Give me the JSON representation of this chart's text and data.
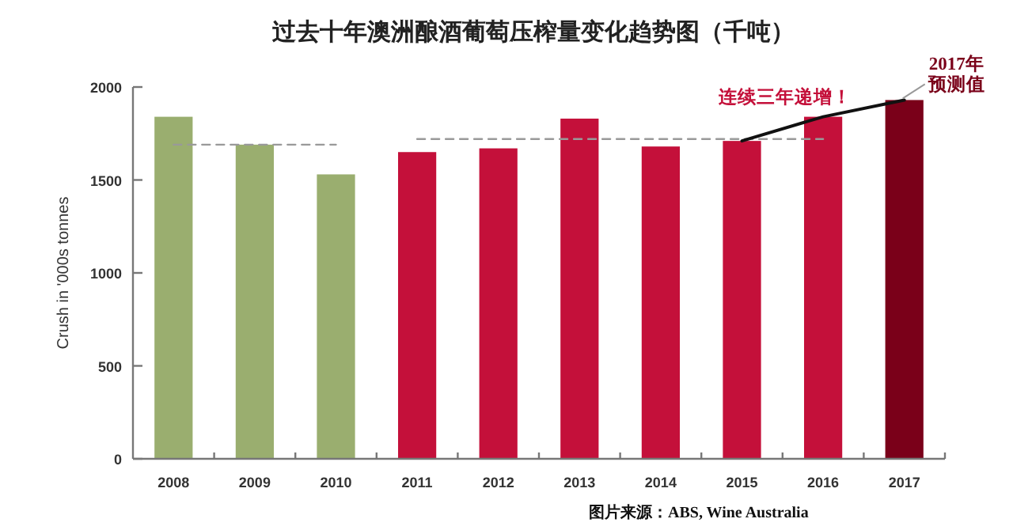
{
  "chart_data": {
    "type": "bar",
    "title": "过去十年澳洲酿酒葡萄压榨量变化趋势图（千吨）",
    "ylabel": "Crush in '000s tonnes",
    "categories": [
      "2008",
      "2009",
      "2010",
      "2011",
      "2012",
      "2013",
      "2014",
      "2015",
      "2016",
      "2017"
    ],
    "series": [
      {
        "colors": [
          "#9aae6f",
          "#9aae6f",
          "#9aae6f",
          "#c4103a",
          "#c4103a",
          "#c4103a",
          "#c4103a",
          "#c4103a",
          "#c4103a",
          "#7a0019"
        ],
        "values": [
          1840,
          1690,
          1530,
          1650,
          1670,
          1830,
          1680,
          1710,
          1840,
          1930
        ]
      },
      {
        "type": "line",
        "values": [
          1690,
          1690,
          1690,
          null,
          null,
          null,
          null,
          null,
          null,
          null
        ],
        "color": "#999999",
        "line_style": "dashed"
      },
      {
        "type": "line",
        "values": [
          null,
          null,
          null,
          1720,
          1720,
          1720,
          1720,
          1720,
          1720,
          null
        ],
        "color": "#999999",
        "line_style": "dashed"
      },
      {
        "type": "line",
        "values": [
          null,
          null,
          null,
          null,
          null,
          null,
          null,
          1710,
          1840,
          1930
        ],
        "color": "#111111",
        "line_style": "solid"
      }
    ],
    "ylim": [
      0,
      2000
    ],
    "yticks": [
      0,
      500,
      1000,
      1500,
      2000
    ],
    "annotations": [
      {
        "text": "连续三年递增！",
        "x": "2016",
        "y": 1840
      },
      {
        "text": "2017年预测值",
        "x": "2017",
        "y": 1930
      },
      "图片来源：ABS, Wine Australia"
    ]
  }
}
